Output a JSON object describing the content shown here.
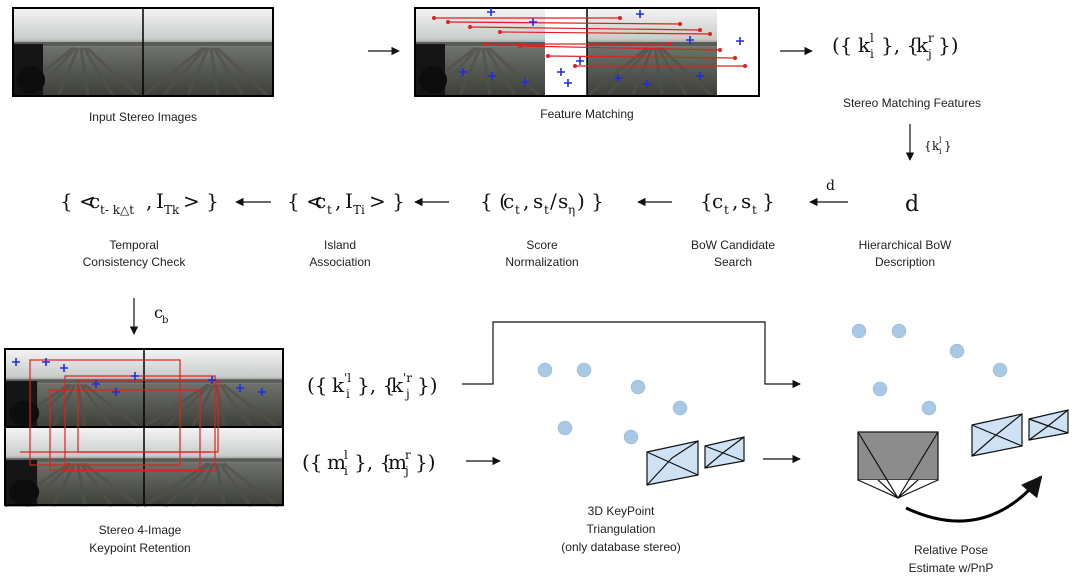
{
  "captions": {
    "input": "Input Stereo Images",
    "matching": "Feature Matching",
    "stereo_features": "Stereo Matching Features",
    "hier_bow_1": "Hierarchical BoW",
    "hier_bow_2": "Description",
    "bow_search_1": "BoW Candidate",
    "bow_search_2": "Search",
    "score_norm_1": "Score",
    "score_norm_2": "Normalization",
    "island_1": "Island",
    "island_2": "Association",
    "temporal_1": "Temporal",
    "temporal_2": "Consistency Check",
    "retention_1": "Stereo 4-Image",
    "retention_2": "Keypoint Retention",
    "triang_1": "3D KeyPoint",
    "triang_2": "Triangulation",
    "triang_3": "(only database stereo)",
    "pose_1": "Relative Pose",
    "pose_2": "Estimate w/PnP"
  },
  "math": {
    "k_l": "k",
    "k_r": "k",
    "sup_l": "l",
    "sup_r": "r",
    "sub_i": "i",
    "sub_j": "j",
    "edge_label_k": "k",
    "edge_label_d": "d",
    "node_d": "d",
    "c": "c",
    "s": "s",
    "sub_t": "t",
    "sub_eta": "η",
    "island_I": "I",
    "sub_Ti": "Ti",
    "sub_Tk": "Tk",
    "sub_temporal": "t- k△t",
    "cb": "c",
    "sub_b": "b",
    "kprime_sup_l": "'l",
    "kprime_sup_r": "'r",
    "m": "m"
  }
}
